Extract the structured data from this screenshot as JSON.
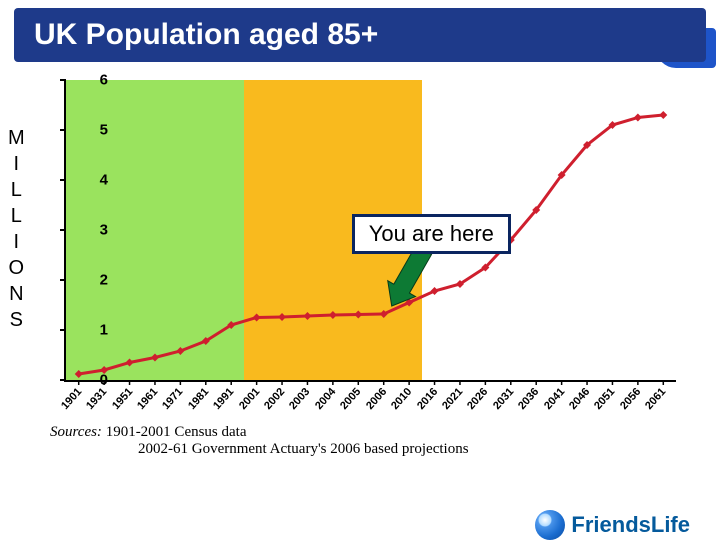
{
  "title": "UK Population aged 85+",
  "yaxis_letters": [
    "M",
    "I",
    "L",
    "L",
    "I",
    "O",
    "N",
    "S"
  ],
  "chart": {
    "type": "line",
    "ylim": [
      0,
      6
    ],
    "ytick_step": 1,
    "background_regions": [
      {
        "from": "1901",
        "to": "2001",
        "color": "#9ae35e"
      },
      {
        "from": "2001",
        "to": "2010",
        "color": "#f9ba1e"
      }
    ],
    "plot_border_color": "#000000",
    "line_color": "#cf1f2e",
    "line_width": 3,
    "marker": "diamond",
    "marker_size": 8,
    "marker_color": "#cf1f2e",
    "categories": [
      "1901",
      "1931",
      "1951",
      "1961",
      "1971",
      "1981",
      "1991",
      "2001",
      "2002",
      "2003",
      "2004",
      "2005",
      "2006",
      "2010",
      "2016",
      "2021",
      "2026",
      "2031",
      "2036",
      "2041",
      "2046",
      "2051",
      "2056",
      "2061"
    ],
    "values": [
      0.12,
      0.2,
      0.35,
      0.45,
      0.58,
      0.78,
      1.1,
      1.25,
      1.26,
      1.28,
      1.3,
      1.31,
      1.32,
      1.55,
      1.78,
      1.92,
      2.25,
      2.8,
      3.4,
      4.1,
      4.7,
      5.1,
      5.25,
      5.3
    ]
  },
  "callout": {
    "text": "You are here",
    "points_to": "2006"
  },
  "arrow": {
    "color": "#0d7a34"
  },
  "sources": {
    "label": "Sources:",
    "line1": "1901-2001 Census data",
    "line2": "2002-61 Government Actuary's 2006 based projections"
  },
  "logo_text": "FriendsLife",
  "colors": {
    "title_bg": "#1e3a8a",
    "title_fg": "#ffffff",
    "logo_fg": "#055a9c"
  }
}
